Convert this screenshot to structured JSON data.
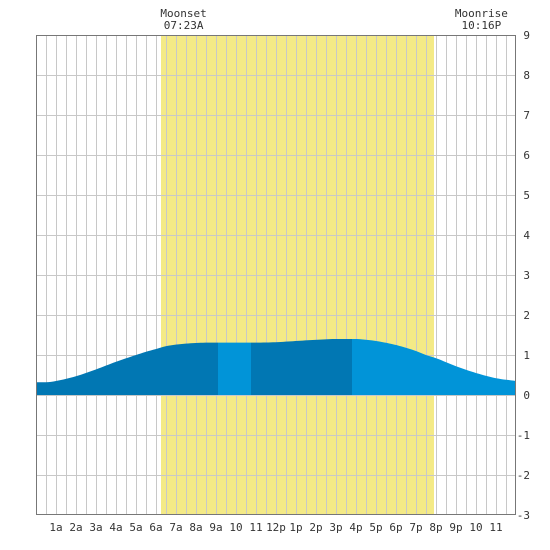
{
  "chart_data": {
    "type": "area",
    "title": "",
    "xlabel": "",
    "ylabel": "",
    "x_tick_labels": [
      "1a",
      "2a",
      "3a",
      "4a",
      "5a",
      "6a",
      "7a",
      "8a",
      "9a",
      "10",
      "11",
      "12p",
      "1p",
      "2p",
      "3p",
      "4p",
      "5p",
      "6p",
      "7p",
      "8p",
      "9p",
      "10",
      "11"
    ],
    "x_range_hours": [
      0,
      24
    ],
    "ylim": [
      -3,
      9
    ],
    "y_ticks": [
      -3,
      -2,
      -1,
      0,
      1,
      2,
      3,
      4,
      5,
      6,
      7,
      8,
      9
    ],
    "y_axis_side": "right",
    "grid": true,
    "daylight_band_hours": [
      6.25,
      19.9
    ],
    "moon_events": [
      {
        "label": "Moonset",
        "time": "07:23A",
        "hour": 7.38
      },
      {
        "label": "Moonrise",
        "time": "10:16P",
        "hour": 22.27
      }
    ],
    "tide_curve": {
      "x": [
        0,
        0.5,
        1,
        2,
        3,
        4,
        5,
        5.5,
        6,
        6.5,
        7,
        8,
        9,
        10,
        11,
        12,
        13,
        14,
        15,
        16,
        16.5,
        17,
        18,
        19,
        19.5,
        20,
        21,
        22,
        23,
        24
      ],
      "y": [
        0.32,
        0.32,
        0.35,
        0.47,
        0.64,
        0.83,
        1.0,
        1.08,
        1.15,
        1.22,
        1.26,
        1.3,
        1.31,
        1.31,
        1.31,
        1.32,
        1.35,
        1.38,
        1.4,
        1.4,
        1.38,
        1.35,
        1.25,
        1.1,
        1.0,
        0.92,
        0.72,
        0.55,
        0.42,
        0.35
      ]
    },
    "segments": [
      {
        "from_hour": 0,
        "to_hour": 9.1,
        "shade": "dark"
      },
      {
        "from_hour": 9.1,
        "to_hour": 10.75,
        "shade": "light"
      },
      {
        "from_hour": 10.75,
        "to_hour": 15.8,
        "shade": "dark"
      },
      {
        "from_hour": 15.8,
        "to_hour": 24,
        "shade": "light"
      }
    ],
    "colors": {
      "daylight": "#f4ea86",
      "tide_dark": "#0177b3",
      "tide_light": "#0194d8",
      "grid": "#c8c8c8",
      "border": "#777777",
      "background": "#ffffff"
    }
  }
}
